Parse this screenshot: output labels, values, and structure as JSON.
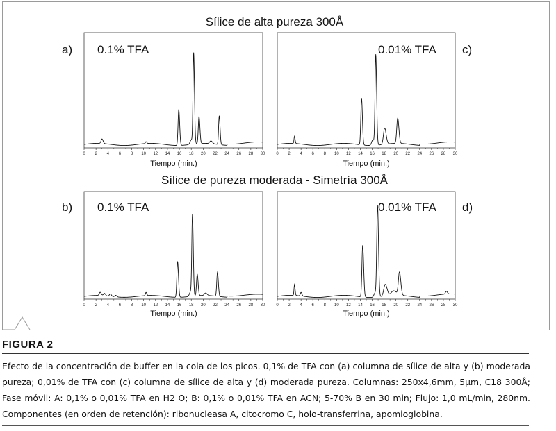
{
  "figure": {
    "top_title": "Sílice de alta pureza  300Å",
    "bottom_title": "Sílice de pureza moderada - Simetría 300Å",
    "panels": [
      {
        "id": "a",
        "letter": "a)",
        "tfa": "0.1% TFA",
        "xlabel": "Tiempo (min.)",
        "peaks": [
          {
            "t": 3.0,
            "h": 0.05,
            "w": 0.15
          },
          {
            "t": 10.4,
            "h": 0.02,
            "w": 0.1
          },
          {
            "t": 15.9,
            "h": 0.4,
            "w": 0.12
          },
          {
            "t": 18.0,
            "h": 0.05,
            "w": 0.2
          },
          {
            "t": 18.4,
            "h": 1.0,
            "w": 0.11
          },
          {
            "t": 19.3,
            "h": 0.3,
            "w": 0.12
          },
          {
            "t": 21.3,
            "h": 0.03,
            "w": 0.2
          },
          {
            "t": 22.7,
            "h": 0.32,
            "w": 0.11
          }
        ]
      },
      {
        "id": "c",
        "letter": "c)",
        "tfa": "0.01% TFA",
        "xlabel": "Tiempo (min.)",
        "peaks": [
          {
            "t": 2.9,
            "h": 0.08,
            "w": 0.08
          },
          {
            "t": 14.2,
            "h": 0.52,
            "w": 0.12
          },
          {
            "t": 16.1,
            "h": 0.06,
            "w": 0.2
          },
          {
            "t": 16.6,
            "h": 1.0,
            "w": 0.12
          },
          {
            "t": 18.1,
            "h": 0.18,
            "w": 0.2
          },
          {
            "t": 20.3,
            "h": 0.28,
            "w": 0.16
          }
        ]
      },
      {
        "id": "b",
        "letter": "b)",
        "tfa": "0.1% TFA",
        "xlabel": "Tiempo (min.)",
        "peaks": [
          {
            "t": 2.7,
            "h": 0.04,
            "w": 0.15
          },
          {
            "t": 3.4,
            "h": 0.03,
            "w": 0.15
          },
          {
            "t": 4.4,
            "h": 0.03,
            "w": 0.15
          },
          {
            "t": 5.3,
            "h": 0.02,
            "w": 0.15
          },
          {
            "t": 10.4,
            "h": 0.04,
            "w": 0.1
          },
          {
            "t": 15.7,
            "h": 0.45,
            "w": 0.12
          },
          {
            "t": 17.9,
            "h": 0.06,
            "w": 0.2
          },
          {
            "t": 18.2,
            "h": 1.0,
            "w": 0.11
          },
          {
            "t": 19.0,
            "h": 0.27,
            "w": 0.12
          },
          {
            "t": 20.4,
            "h": 0.03,
            "w": 0.2
          },
          {
            "t": 22.4,
            "h": 0.3,
            "w": 0.12
          }
        ]
      },
      {
        "id": "d",
        "letter": "d)",
        "tfa": "0.01% TFA",
        "xlabel": "Tiempo (min.)",
        "peaks": [
          {
            "t": 2.9,
            "h": 0.12,
            "w": 0.08
          },
          {
            "t": 4.0,
            "h": 0.04,
            "w": 0.12
          },
          {
            "t": 14.4,
            "h": 0.57,
            "w": 0.13
          },
          {
            "t": 16.5,
            "h": 0.05,
            "w": 0.2
          },
          {
            "t": 16.9,
            "h": 1.0,
            "w": 0.13
          },
          {
            "t": 18.2,
            "h": 0.13,
            "w": 0.25
          },
          {
            "t": 19.6,
            "h": 0.05,
            "w": 0.4
          },
          {
            "t": 20.6,
            "h": 0.25,
            "w": 0.18
          },
          {
            "t": 28.5,
            "h": 0.03,
            "w": 0.15
          }
        ]
      }
    ],
    "x_ticks": [
      0,
      2,
      4,
      6,
      8,
      10,
      12,
      14,
      16,
      18,
      20,
      22,
      24,
      26,
      28,
      30
    ],
    "x_range": [
      0,
      30
    ]
  },
  "caption": {
    "label": "FIGURA 2",
    "text": "Efecto de la concentración de buffer en la cola de los picos. 0,1% de TFA con (a) columna de sílice de alta y (b) moderada pureza; 0,01% de TFA con (c) columna de sílice de alta y (d) moderada pureza. Columnas: 250x4,6mm, 5µm, C18 300Å; Fase móvil: A: 0,1% o 0,01% TFA en H2 O; B: 0,1% o 0,01% TFA en ACN; 5-70% B en 30 min; Flujo: 1,0 mL/min, 280nm. Componentes (en orden de retención): ribonucleasa A, citocromo C, holo-transferrina, apomioglobina."
  }
}
